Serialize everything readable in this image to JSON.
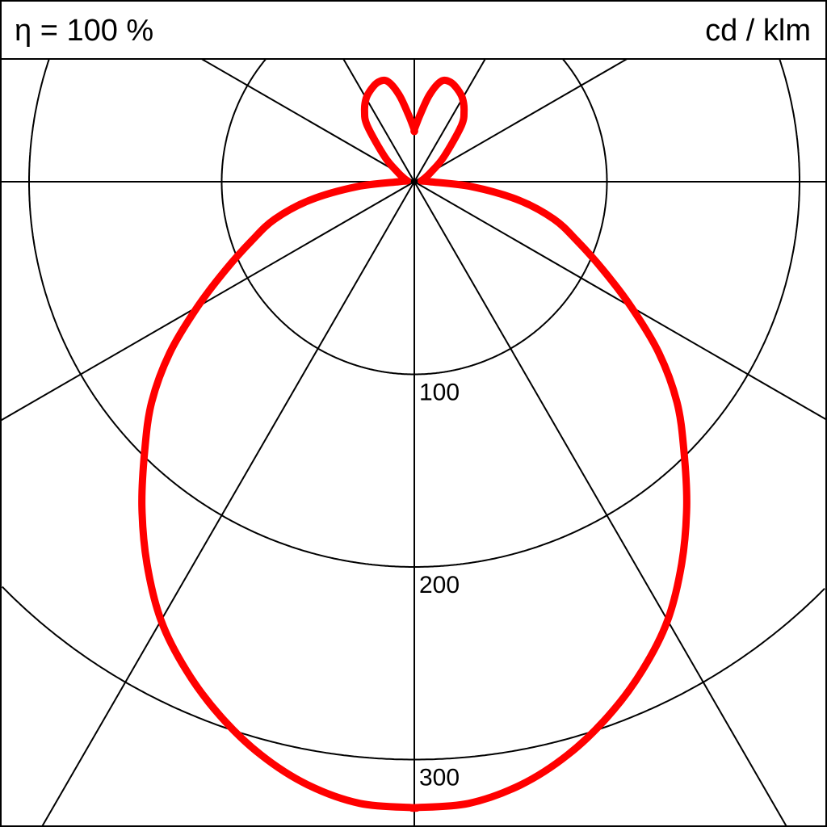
{
  "header": {
    "efficiency": "η = 100 %",
    "unit": "cd / klm"
  },
  "chart_data": {
    "type": "polar-line",
    "title": "",
    "unit": "cd / klm",
    "radial_ticks": [
      100,
      200,
      300,
      400
    ],
    "radial_tick_labels": [
      "100",
      "200",
      "300"
    ],
    "angular_grid_deg": [
      0,
      30,
      60,
      90,
      120,
      150,
      180,
      210,
      240,
      270,
      300,
      330
    ],
    "grid": true,
    "series_color": "#ff0000",
    "symmetric": true,
    "gamma_deg": [
      0,
      5,
      10,
      15,
      20,
      25,
      30,
      35,
      40,
      45,
      50,
      55,
      60,
      65,
      70,
      75,
      80,
      85,
      90,
      95,
      100,
      110,
      120,
      130,
      140,
      145,
      150,
      155,
      160,
      165,
      170,
      175,
      180
    ],
    "values": [
      325,
      324,
      318,
      308,
      295,
      280,
      263,
      242,
      220,
      198,
      178,
      155,
      130,
      108,
      90,
      75,
      55,
      30,
      8,
      4,
      4,
      6,
      10,
      20,
      38,
      45,
      50,
      53,
      55,
      54,
      46,
      35,
      27
    ]
  }
}
